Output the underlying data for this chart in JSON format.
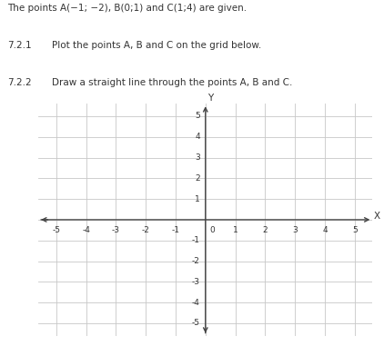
{
  "title_lines": [
    "The points A(−1; −2), B(0;1) and C(1;4) are given.",
    "7.2.1    Plot the points A, B and C on the grid below.",
    "7.2.2    Draw a straight line through the points A, B and C."
  ],
  "xlim": [
    -5.6,
    5.6
  ],
  "ylim": [
    -5.6,
    5.6
  ],
  "xticks": [
    -5,
    -4,
    -3,
    -2,
    -1,
    0,
    1,
    2,
    3,
    4,
    5
  ],
  "yticks": [
    -5,
    -4,
    -3,
    -2,
    -1,
    1,
    2,
    3,
    4,
    5
  ],
  "xlabel": "X",
  "ylabel": "Y",
  "grid_color": "#c8c8c8",
  "axis_color": "#444444",
  "bg_color": "#ffffff",
  "text_color": "#333333",
  "font_size_title": 7.5,
  "font_size_tick": 6.5
}
